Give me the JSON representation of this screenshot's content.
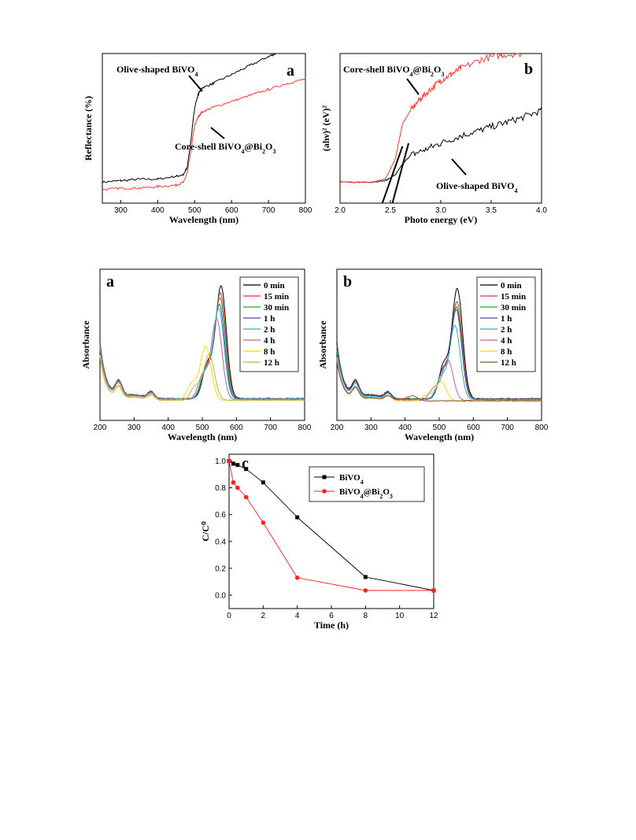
{
  "chart_data": [
    {
      "id": "top-a",
      "type": "line",
      "panel_letter": "a",
      "xlabel": "Wavelength (nm)",
      "ylabel": "Reflectance (%)",
      "xlim": [
        250,
        800
      ],
      "xticks": [
        300,
        400,
        500,
        600,
        700,
        800
      ],
      "ylim": [
        0,
        100
      ],
      "grid": false,
      "series": [
        {
          "color": "#000000",
          "x": [
            250,
            300,
            350,
            400,
            450,
            470,
            480,
            490,
            500,
            510,
            520,
            550,
            600,
            650,
            700,
            720
          ],
          "y": [
            14,
            15,
            16,
            16,
            18,
            19,
            24,
            42,
            64,
            73,
            77,
            80,
            86,
            92,
            98,
            100
          ]
        },
        {
          "color": "#ff3b30",
          "x": [
            250,
            300,
            350,
            400,
            450,
            470,
            480,
            490,
            500,
            510,
            520,
            550,
            600,
            650,
            700,
            750,
            800
          ],
          "y": [
            9,
            10,
            10,
            11,
            12,
            14,
            20,
            35,
            52,
            58,
            61,
            64,
            68,
            72,
            76,
            80,
            83
          ]
        }
      ],
      "annotations": [
        {
          "text": "Olive-shaped BiVO",
          "sub": "4",
          "x": 500,
          "y": 93
        },
        {
          "text": "Core-shell BiVO",
          "sub": "4",
          "tail": "@Bi",
          "sub2": "2",
          "tail2": "O",
          "sub3": "3",
          "x": 620,
          "y": 47
        }
      ]
    },
    {
      "id": "top-b",
      "type": "line",
      "panel_letter": "b",
      "xlabel": "Photo energy (eV)",
      "ylabel": "(ahν)² (eV)²",
      "xlim": [
        2.0,
        4.0
      ],
      "xticks": [
        2.0,
        2.5,
        3.0,
        3.5,
        4.0
      ],
      "xtick_labels": [
        "2.0",
        "2.5",
        "3.0",
        "3.5",
        "4.0"
      ],
      "ylim": [
        0,
        100
      ],
      "grid": false,
      "series": [
        {
          "color": "#000000",
          "x": [
            2.0,
            2.3,
            2.45,
            2.55,
            2.62,
            2.7,
            2.85,
            3.0,
            3.2,
            3.4,
            3.6,
            3.8,
            4.0
          ],
          "y": [
            14,
            14,
            15,
            19,
            26,
            32,
            36,
            40,
            45,
            49,
            53,
            57,
            62
          ]
        },
        {
          "color": "#ff3b30",
          "x": [
            2.0,
            2.3,
            2.45,
            2.55,
            2.62,
            2.7,
            2.8,
            2.9,
            3.0,
            3.1,
            3.2,
            3.4,
            3.6,
            3.8
          ],
          "y": [
            14,
            14,
            16,
            30,
            53,
            62,
            70,
            76,
            82,
            86,
            90,
            96,
            99,
            100
          ]
        }
      ],
      "annotations": [
        {
          "text": "Core-shell BiVO",
          "sub": "4",
          "tail": "@Bi",
          "sub2": "2",
          "tail2": "O",
          "sub3": "3",
          "x": 2.0,
          "y": 92
        },
        {
          "text": "Olive-shaped BiVO",
          "sub": "4",
          "x": 3.5,
          "y": 10
        }
      ]
    },
    {
      "id": "mid-a",
      "type": "line",
      "panel_letter": "a",
      "xlabel": "Wavelength (nm)",
      "ylabel": "Absorbance",
      "xlim": [
        200,
        800
      ],
      "xticks": [
        200,
        300,
        400,
        500,
        600,
        700,
        800
      ],
      "ylim": [
        0,
        100
      ],
      "grid": false,
      "legend_position": "top-right",
      "legend": [
        "0 min",
        "15 min",
        "30 min",
        "1 h",
        "2 h",
        "4 h",
        "8 h",
        "12 h"
      ],
      "series": [
        {
          "name": "0 min",
          "color": "#000000",
          "peak": 555,
          "height": 88
        },
        {
          "name": "15 min",
          "color": "#e8323c",
          "peak": 553,
          "height": 83
        },
        {
          "name": "30 min",
          "color": "#2ca02c",
          "peak": 552,
          "height": 79
        },
        {
          "name": "1 h",
          "color": "#4a4ab0",
          "peak": 550,
          "height": 74
        },
        {
          "name": "2 h",
          "color": "#28b4b4",
          "peak": 548,
          "height": 71
        },
        {
          "name": "4 h",
          "color": "#c060a0",
          "peak": 542,
          "height": 63
        },
        {
          "name": "8 h",
          "color": "#ffd700",
          "peak": 510,
          "height": 42
        },
        {
          "name": "12 h",
          "color": "#b8b84a",
          "peak": 520,
          "height": 36
        }
      ]
    },
    {
      "id": "mid-b",
      "type": "line",
      "panel_letter": "b",
      "xlabel": "Wavelength (nm)",
      "ylabel": "Absorbance",
      "xlim": [
        200,
        800
      ],
      "xticks": [
        200,
        300,
        400,
        500,
        600,
        700,
        800
      ],
      "ylim": [
        0,
        100
      ],
      "grid": false,
      "legend_position": "top-right",
      "legend": [
        "0 min",
        "15 min",
        "30 min",
        "1 h",
        "2 h",
        "4 h",
        "8 h",
        "12 h"
      ],
      "series": [
        {
          "name": "0 min",
          "color": "#000000",
          "peak": 553,
          "height": 86
        },
        {
          "name": "15 min",
          "color": "#e8323c",
          "peak": 552,
          "height": 76
        },
        {
          "name": "30 min",
          "color": "#2ca02c",
          "peak": 551,
          "height": 72
        },
        {
          "name": "1 h",
          "color": "#4a4ab0",
          "peak": 550,
          "height": 70
        },
        {
          "name": "2 h",
          "color": "#28b4b4",
          "peak": 546,
          "height": 58
        },
        {
          "name": "4 h",
          "color": "#c060a0",
          "peak": 525,
          "height": 32
        },
        {
          "name": "8 h",
          "color": "#ffd700",
          "peak": 505,
          "height": 15
        },
        {
          "name": "12 h",
          "color": "#7a5a2a",
          "peak": 420,
          "height": 4
        }
      ]
    },
    {
      "id": "bottom-c",
      "type": "line",
      "panel_letter": "c",
      "xlabel": "Time (h)",
      "ylabel": "C/C⁰",
      "xlim": [
        0,
        12
      ],
      "xticks": [
        0,
        2,
        4,
        6,
        8,
        10,
        12
      ],
      "ylim": [
        -0.1,
        1.05
      ],
      "yticks": [
        0.0,
        0.2,
        0.4,
        0.6,
        0.8,
        1.0
      ],
      "ytick_labels": [
        "0.0",
        "0.2",
        "0.4",
        "0.6",
        "0.8",
        "1.0"
      ],
      "grid": false,
      "legend_position": "top-right",
      "series": [
        {
          "name": "BiVO",
          "sub": "4",
          "color": "#000000",
          "marker": "square",
          "x": [
            0,
            0.25,
            0.5,
            1,
            2,
            4,
            8,
            12
          ],
          "y": [
            1.0,
            0.98,
            0.97,
            0.94,
            0.84,
            0.58,
            0.135,
            0.035
          ]
        },
        {
          "name": "BiVO",
          "sub": "4",
          "tail": "@Bi",
          "sub2": "2",
          "tail2": "O",
          "sub3": "3",
          "color": "#ff2020",
          "marker": "circle",
          "x": [
            0,
            0.25,
            0.5,
            1,
            2,
            4,
            8,
            12
          ],
          "y": [
            1.0,
            0.84,
            0.8,
            0.73,
            0.54,
            0.13,
            0.035,
            0.035
          ]
        }
      ]
    }
  ]
}
